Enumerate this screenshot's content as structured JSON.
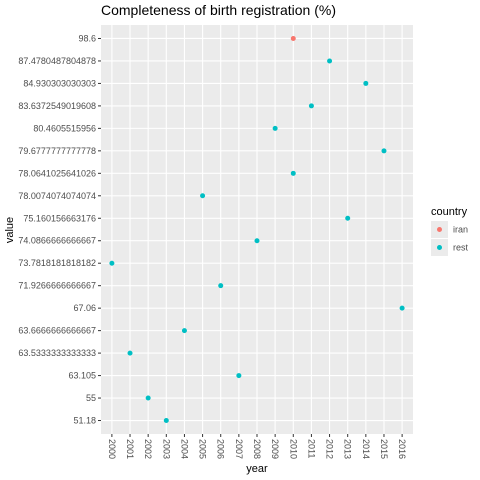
{
  "chart_data": {
    "type": "scatter",
    "title": "Completeness of birth registration (%)",
    "x_label": "year",
    "y_label": "value",
    "xticks": [
      2000,
      2001,
      2002,
      2003,
      2004,
      2005,
      2006,
      2007,
      2008,
      2009,
      2010,
      2011,
      2012,
      2013,
      2014,
      2015,
      2016
    ],
    "yticks": [
      51.18,
      55,
      63.105,
      63.5333333333333,
      63.6666666666667,
      67.06,
      71.9266666666667,
      73.7818181818182,
      74.0866666666667,
      75.160156663176,
      78.0074074074074,
      78.0641025641026,
      79.6777777777778,
      80.4605515956,
      83.6372549019608,
      84.930303030303,
      87.4780487804878,
      98.6
    ],
    "legend_title": "country",
    "grid": true,
    "series": [
      {
        "name": "iran",
        "color": "#F8766D",
        "x": [
          2010
        ],
        "values": [
          98.6
        ]
      },
      {
        "name": "rest",
        "color": "#00BFC4",
        "x": [
          2000,
          2001,
          2002,
          2003,
          2004,
          2005,
          2006,
          2007,
          2008,
          2009,
          2010,
          2011,
          2012,
          2013,
          2014,
          2015,
          2016
        ],
        "values": [
          73.7818181818182,
          63.5333333333333,
          55,
          51.18,
          63.6666666666667,
          78.0074074074074,
          71.9266666666667,
          63.105,
          74.0866666666667,
          80.4605515956,
          78.0641025641026,
          83.6372549019608,
          87.4780487804878,
          75.160156663176,
          84.930303030303,
          79.6777777777778,
          67.06
        ]
      }
    ]
  }
}
